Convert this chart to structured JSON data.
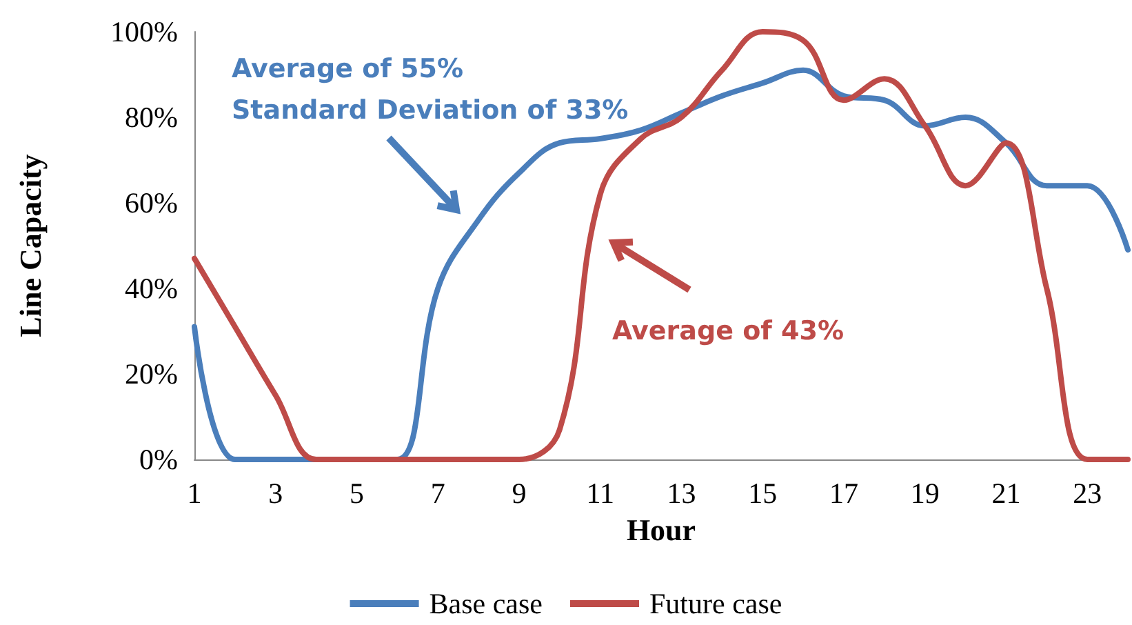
{
  "chart_data": {
    "type": "line",
    "xlabel": "Hour",
    "ylabel": "Line Capacity",
    "x": [
      1,
      2,
      3,
      4,
      5,
      6,
      7,
      8,
      9,
      10,
      11,
      12,
      13,
      14,
      15,
      16,
      17,
      18,
      19,
      20,
      21,
      22,
      23,
      24
    ],
    "series": [
      {
        "name": "Base case",
        "color": "#4a7ebb",
        "values": [
          31,
          0,
          0,
          0,
          0,
          0,
          40,
          56,
          67,
          74,
          75,
          77,
          81,
          85,
          88,
          91,
          85,
          84,
          78,
          80,
          74,
          64,
          64,
          49
        ]
      },
      {
        "name": "Future case",
        "color": "#be4b48",
        "values": [
          47,
          31,
          15,
          0,
          0,
          0,
          0,
          0,
          0,
          7,
          62,
          75,
          80,
          91,
          100,
          98,
          84,
          89,
          78,
          64,
          74,
          40,
          0,
          0
        ]
      }
    ],
    "xlim": [
      1,
      24
    ],
    "xticks": [
      1,
      3,
      5,
      7,
      9,
      11,
      13,
      15,
      17,
      19,
      21,
      23
    ],
    "ylim": [
      0,
      100
    ],
    "yticks": [
      {
        "value": 0,
        "label": "0%"
      },
      {
        "value": 20,
        "label": "20%"
      },
      {
        "value": 40,
        "label": "40%"
      },
      {
        "value": 60,
        "label": "60%"
      },
      {
        "value": 80,
        "label": "80%"
      },
      {
        "value": 100,
        "label": "100%"
      }
    ],
    "annotations": [
      "Average of 55%\nStandard Deviation of 33%",
      "Average of 43%"
    ],
    "legend": "bottom",
    "grid": false,
    "marker": "none",
    "line_style": "solid"
  }
}
